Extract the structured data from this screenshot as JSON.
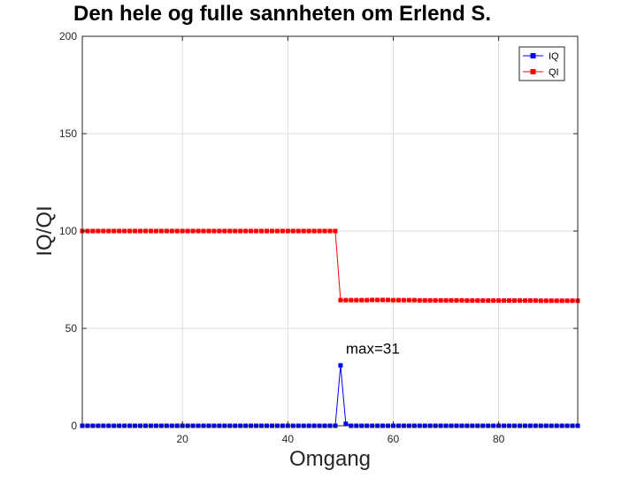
{
  "chart_data": {
    "type": "line",
    "title": "Den hele og fulle sannheten om Erlend S.",
    "xlabel": "Omgang",
    "ylabel": "IQ/QI",
    "xlim": [
      1,
      95
    ],
    "ylim": [
      0,
      200
    ],
    "xticks": [
      20,
      40,
      60,
      80
    ],
    "yticks": [
      0,
      50,
      100,
      150,
      200
    ],
    "grid": true,
    "legend_position": "top-right",
    "annotation": {
      "text": "max=31",
      "x": 51,
      "y": 37
    },
    "series": [
      {
        "name": "IQ",
        "color": "#0000ff",
        "marker": "square",
        "x": [
          1,
          2,
          3,
          4,
          5,
          6,
          7,
          8,
          9,
          10,
          11,
          12,
          13,
          14,
          15,
          16,
          17,
          18,
          19,
          20,
          21,
          22,
          23,
          24,
          25,
          26,
          27,
          28,
          29,
          30,
          31,
          32,
          33,
          34,
          35,
          36,
          37,
          38,
          39,
          40,
          41,
          42,
          43,
          44,
          45,
          46,
          47,
          48,
          49,
          50,
          51,
          52,
          53,
          54,
          55,
          56,
          57,
          58,
          59,
          60,
          61,
          62,
          63,
          64,
          65,
          66,
          67,
          68,
          69,
          70,
          71,
          72,
          73,
          74,
          75,
          76,
          77,
          78,
          79,
          80,
          81,
          82,
          83,
          84,
          85,
          86,
          87,
          88,
          89,
          90,
          91,
          92,
          93,
          94,
          95
        ],
        "y": [
          0,
          0,
          0,
          0,
          0,
          0,
          0,
          0,
          0,
          0,
          0,
          0,
          0,
          0,
          0,
          0,
          0,
          0,
          0,
          0,
          0,
          0,
          0,
          0,
          0,
          0,
          0,
          0,
          0,
          0,
          0,
          0,
          0,
          0,
          0,
          0,
          0,
          0,
          0,
          0,
          0,
          0,
          0,
          0,
          0,
          0,
          0,
          0,
          0,
          31,
          1,
          0,
          0,
          0,
          0,
          0,
          0,
          0,
          0,
          0,
          0,
          0,
          0,
          0,
          0,
          0,
          0,
          0,
          0,
          0,
          0,
          0,
          0,
          0,
          0,
          0,
          0,
          0,
          0,
          0,
          0,
          0,
          0,
          0,
          0,
          0,
          0,
          0,
          0,
          0,
          0,
          0,
          0,
          0,
          0
        ]
      },
      {
        "name": "QI",
        "color": "#ff0000",
        "marker": "square",
        "x": [
          1,
          2,
          3,
          4,
          5,
          6,
          7,
          8,
          9,
          10,
          11,
          12,
          13,
          14,
          15,
          16,
          17,
          18,
          19,
          20,
          21,
          22,
          23,
          24,
          25,
          26,
          27,
          28,
          29,
          30,
          31,
          32,
          33,
          34,
          35,
          36,
          37,
          38,
          39,
          40,
          41,
          42,
          43,
          44,
          45,
          46,
          47,
          48,
          49,
          50,
          51,
          52,
          53,
          54,
          55,
          56,
          57,
          58,
          59,
          60,
          61,
          62,
          63,
          64,
          65,
          66,
          67,
          68,
          69,
          70,
          71,
          72,
          73,
          74,
          75,
          76,
          77,
          78,
          79,
          80,
          81,
          82,
          83,
          84,
          85,
          86,
          87,
          88,
          89,
          90,
          91,
          92,
          93,
          94,
          95
        ],
        "y": [
          100,
          100,
          100,
          100,
          100,
          100,
          100,
          100,
          100,
          100,
          100,
          100,
          100,
          100,
          100,
          100,
          100,
          100,
          100,
          100,
          100,
          100,
          100,
          100,
          100,
          100,
          100,
          100,
          100,
          100,
          100,
          100,
          100,
          100,
          100,
          100,
          100,
          100,
          100,
          100,
          100,
          100,
          100,
          100,
          100,
          100,
          100,
          100,
          100,
          64.5,
          64.5,
          64.5,
          64.5,
          64.5,
          64.5,
          64.6,
          64.6,
          64.6,
          64.6,
          64.5,
          64.5,
          64.5,
          64.5,
          64.5,
          64.4,
          64.4,
          64.4,
          64.4,
          64.4,
          64.4,
          64.4,
          64.4,
          64.4,
          64.3,
          64.3,
          64.3,
          64.3,
          64.3,
          64.3,
          64.3,
          64.3,
          64.3,
          64.3,
          64.3,
          64.3,
          64.3,
          64.3,
          64.2,
          64.2,
          64.2,
          64.2,
          64.2,
          64.2,
          64.2,
          64.2
        ]
      }
    ]
  }
}
